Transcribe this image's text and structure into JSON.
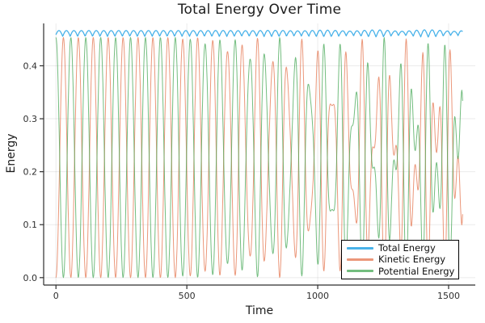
{
  "colors": {
    "background": "#ffffff",
    "axis": "#2e2e2e",
    "grid": "rgba(0,0,0,0.08)",
    "tick_text": "#2e2e2e",
    "legend_border": "#000000"
  },
  "chart_data": {
    "type": "line",
    "title": "Total Energy Over Time",
    "xlabel": "Time",
    "ylabel": "Energy",
    "xlim": [
      -47,
      1602
    ],
    "ylim": [
      -0.014,
      0.48
    ],
    "grid": true,
    "legend_position": "bottom-right",
    "x_ticks": [
      {
        "v": 0,
        "label": "0"
      },
      {
        "v": 500,
        "label": "500"
      },
      {
        "v": 1000,
        "label": "1000"
      },
      {
        "v": 1500,
        "label": "1500"
      }
    ],
    "y_ticks": [
      {
        "v": 0.0,
        "label": "0.0"
      },
      {
        "v": 0.1,
        "label": "0.1"
      },
      {
        "v": 0.2,
        "label": "0.2"
      },
      {
        "v": 0.3,
        "label": "0.3"
      },
      {
        "v": 0.4,
        "label": "0.4"
      }
    ],
    "series": [
      {
        "name": "Total Energy",
        "color": "#1B9FE3",
        "alpha": 0.8,
        "width": 1.3,
        "role": "total"
      },
      {
        "name": "Kinetic Energy",
        "color": "#E36F47",
        "alpha": 0.72,
        "width": 1.0,
        "role": "kinetic"
      },
      {
        "name": "Potential Energy",
        "color": "#3DA44E",
        "alpha": 0.72,
        "width": 1.0,
        "role": "potential"
      }
    ],
    "synthesis": {
      "t_start": 0,
      "t_end": 1555,
      "dt": 1.6,
      "mech_energy": 0.4535,
      "total_base": 0.4555,
      "total_amp": 0.011,
      "total_phase": 0.3,
      "total_wobble": 0.003,
      "omega0": 0.05512,
      "omega1": 0.0944,
      "phase0": 0.0,
      "phase1": 1.0,
      "mix_max": 0.5,
      "mix_ramp_start": 400,
      "mix_ramp_length": 1200
    },
    "description": "Kinetic (orange) and potential (green) energy oscillate rapidly between ~0 and ~0.45, exchanging energy with period ~57 time units. Total energy (blue) stays near 0.455-0.466 with small periodic scallops. After t~900 a second mode beats in: oscillation minima rise into a band near 0.1-0.23 and shoulders appear near 0.25-0.35, while peaks stay ~0.42-0.45. Axis: Time 0-1500+, Energy 0.0-0.4+."
  }
}
